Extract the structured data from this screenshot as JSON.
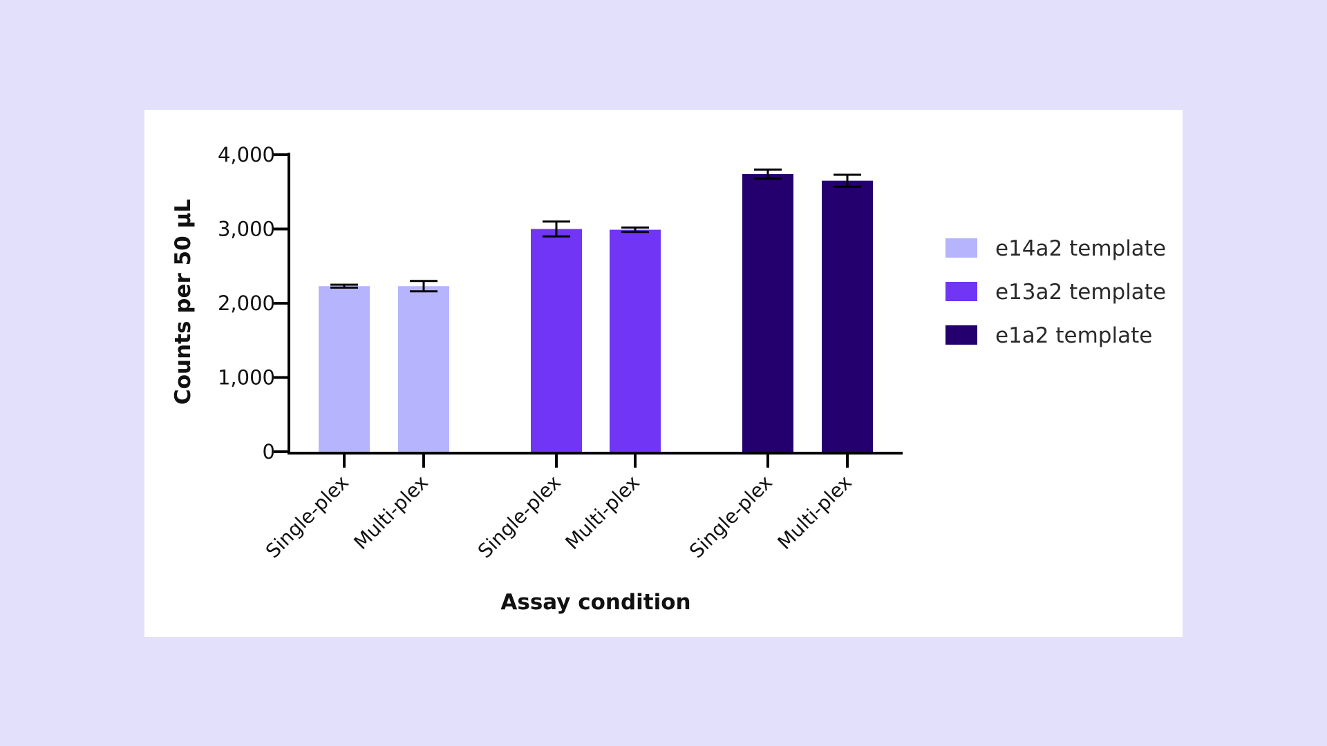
{
  "chart_data": {
    "type": "bar",
    "title": "",
    "xlabel": "Assay condition",
    "ylabel": "Counts per 50 µL",
    "ylim": [
      0,
      4000
    ],
    "yticks": [
      0,
      1000,
      2000,
      3000,
      4000
    ],
    "ytick_labels": [
      "0",
      "1,000",
      "2,000",
      "3,000",
      "4,000"
    ],
    "grid": false,
    "legend_position": "right",
    "bars": [
      {
        "category": "Single-plex",
        "series": "e14a2 template",
        "value": 2230,
        "error": 20
      },
      {
        "category": "Multi-plex",
        "series": "e14a2 template",
        "value": 2230,
        "error": 70
      },
      {
        "category": "Single-plex",
        "series": "e13a2 template",
        "value": 3000,
        "error": 100
      },
      {
        "category": "Multi-plex",
        "series": "e13a2 template",
        "value": 2990,
        "error": 30
      },
      {
        "category": "Single-plex",
        "series": "e1a2 template",
        "value": 3740,
        "error": 60
      },
      {
        "category": "Multi-plex",
        "series": "e1a2 template",
        "value": 3650,
        "error": 80
      }
    ],
    "series": [
      {
        "name": "e14a2 template",
        "color": "#b5b4fc"
      },
      {
        "name": "e13a2 template",
        "color": "#7035f5"
      },
      {
        "name": "e1a2 template",
        "color": "#24006e"
      }
    ]
  }
}
